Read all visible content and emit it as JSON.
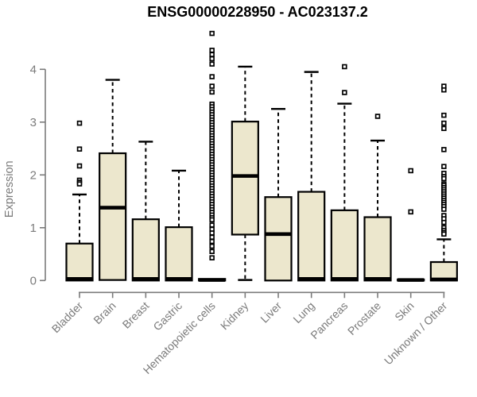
{
  "title": "ENSG00000228950 - AC023137.2",
  "colors": {
    "box_fill": "#ece7cd",
    "box_stroke": "#000000",
    "axis": "#7b7b7b",
    "title_text": "#000000",
    "background": "#ffffff"
  },
  "chart_data": {
    "type": "boxplot",
    "title": "ENSG00000228950 - AC023137.2",
    "xlabel": "",
    "ylabel": "Expression",
    "ylim": [
      0,
      4.7
    ],
    "yticks": [
      0,
      1,
      2,
      3,
      4
    ],
    "grid": false,
    "legend": "none",
    "categories": [
      "Bladder",
      "Brain",
      "Breast",
      "Gastric",
      "Hematopoietic cells",
      "Kidney",
      "Liver",
      "Lung",
      "Pancreas",
      "Prostate",
      "Skin",
      "Unknown / Other"
    ],
    "series": [
      {
        "label": "Bladder",
        "whisker_low": 0,
        "q1": 0,
        "median": 0.03,
        "q3": 0.7,
        "whisker_high": 1.63,
        "outliers": [
          2.98,
          2.49,
          2.17,
          1.9,
          1.86,
          1.83
        ]
      },
      {
        "label": "Brain",
        "whisker_low": 0,
        "q1": 0.01,
        "median": 1.38,
        "q3": 2.41,
        "whisker_high": 3.8,
        "outliers": []
      },
      {
        "label": "Breast",
        "whisker_low": 0,
        "q1": 0,
        "median": 0.03,
        "q3": 1.16,
        "whisker_high": 2.63,
        "outliers": []
      },
      {
        "label": "Gastric",
        "whisker_low": 0,
        "q1": 0,
        "median": 0.03,
        "q3": 1.01,
        "whisker_high": 2.08,
        "outliers": []
      },
      {
        "label": "Hematopoietic cells",
        "whisker_low": 0,
        "q1": 0,
        "median": 0.01,
        "q3": 0.03,
        "whisker_high": 0.04,
        "outliers": [
          4.68,
          4.36,
          4.28,
          4.2,
          4.1,
          3.86,
          3.68,
          3.57,
          3.34,
          3.29,
          3.24,
          3.19,
          3.14,
          3.09,
          3.04,
          2.99,
          2.94,
          2.89,
          2.84,
          2.79,
          2.74,
          2.69,
          2.64,
          2.59,
          2.54,
          2.49,
          2.44,
          2.39,
          2.34,
          2.29,
          2.24,
          2.19,
          2.14,
          2.09,
          2.04,
          1.99,
          1.94,
          1.89,
          1.84,
          1.79,
          1.74,
          1.69,
          1.64,
          1.59,
          1.54,
          1.49,
          1.44,
          1.39,
          1.34,
          1.29,
          1.24,
          1.19,
          1.15,
          1.05,
          0.97,
          0.9,
          0.82,
          0.74,
          0.65,
          0.55,
          0.43
        ]
      },
      {
        "label": "Kidney",
        "whisker_low": 0.01,
        "q1": 0.87,
        "median": 1.98,
        "q3": 3.01,
        "whisker_high": 4.05,
        "outliers": []
      },
      {
        "label": "Liver",
        "whisker_low": 0,
        "q1": 0,
        "median": 0.88,
        "q3": 1.58,
        "whisker_high": 3.25,
        "outliers": []
      },
      {
        "label": "Lung",
        "whisker_low": 0,
        "q1": 0,
        "median": 0.03,
        "q3": 1.68,
        "whisker_high": 3.95,
        "outliers": []
      },
      {
        "label": "Pancreas",
        "whisker_low": 0,
        "q1": 0,
        "median": 0.03,
        "q3": 1.33,
        "whisker_high": 3.35,
        "outliers": [
          4.05,
          3.56
        ]
      },
      {
        "label": "Prostate",
        "whisker_low": 0,
        "q1": 0,
        "median": 0.03,
        "q3": 1.2,
        "whisker_high": 2.65,
        "outliers": [
          3.11
        ]
      },
      {
        "label": "Skin",
        "whisker_low": 0,
        "q1": 0,
        "median": 0.01,
        "q3": 0.02,
        "whisker_high": 0.03,
        "outliers": [
          2.08,
          1.3
        ]
      },
      {
        "label": "Unknown / Other",
        "whisker_low": 0,
        "q1": 0,
        "median": 0.02,
        "q3": 0.35,
        "whisker_high": 0.78,
        "outliers": [
          3.68,
          3.61,
          3.13,
          2.98,
          2.88,
          2.48,
          2.16,
          2.03,
          1.97,
          1.93,
          1.83,
          1.8,
          1.76,
          1.72,
          1.68,
          1.64,
          1.6,
          1.56,
          1.52,
          1.48,
          1.44,
          1.4,
          1.35,
          1.23,
          1.17,
          1.1,
          1.0,
          0.95,
          0.91,
          0.88
        ]
      }
    ]
  }
}
